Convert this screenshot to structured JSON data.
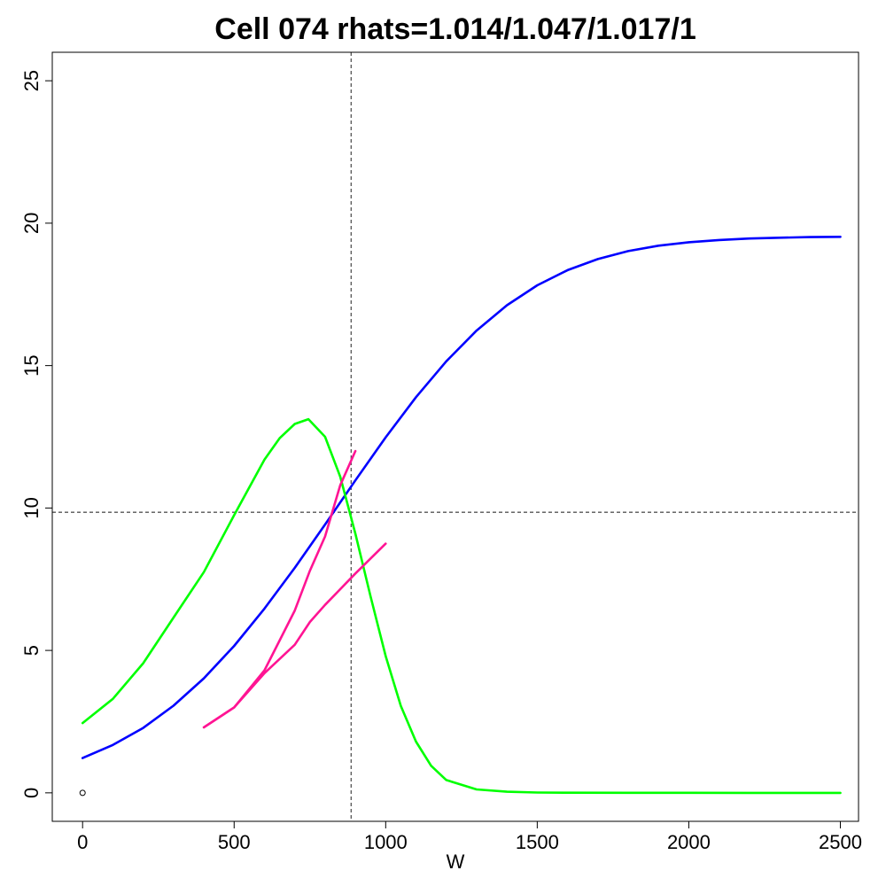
{
  "chart_data": {
    "type": "line",
    "title": "Cell 074 rhats=1.014/1.047/1.017/1",
    "xlabel": "W",
    "ylabel": "",
    "xlim": [
      -100,
      2560
    ],
    "ylim": [
      -1.0,
      26.0
    ],
    "x_ticks": [
      0,
      500,
      1000,
      1500,
      2000,
      2500
    ],
    "y_ticks": [
      0,
      5,
      10,
      15,
      20,
      25
    ],
    "grid": false,
    "reference_lines": {
      "vertical_x": 886,
      "horizontal_y": 9.85
    },
    "points": [
      {
        "x": 0,
        "y": 0
      }
    ],
    "series": [
      {
        "color": "#0000ff",
        "x": [
          0,
          100,
          200,
          300,
          400,
          500,
          600,
          700,
          800,
          900,
          1000,
          1100,
          1200,
          1300,
          1400,
          1500,
          1600,
          1700,
          1800,
          1900,
          2000,
          2100,
          2200,
          2300,
          2400,
          2500
        ],
        "y": [
          1.22,
          1.68,
          2.28,
          3.06,
          4.02,
          5.16,
          6.47,
          7.9,
          9.42,
          10.97,
          12.48,
          13.89,
          15.15,
          16.23,
          17.12,
          17.82,
          18.35,
          18.74,
          19.02,
          19.21,
          19.33,
          19.41,
          19.46,
          19.49,
          19.51,
          19.52
        ]
      },
      {
        "color": "#00ff00",
        "x": [
          0,
          100,
          200,
          300,
          400,
          500,
          600,
          650,
          700,
          745,
          800,
          850,
          900,
          950,
          1000,
          1050,
          1100,
          1150,
          1200,
          1300,
          1400,
          1500,
          1600,
          1800,
          2000,
          2200,
          2500
        ],
        "y": [
          2.45,
          3.3,
          4.55,
          6.15,
          7.75,
          9.75,
          11.7,
          12.45,
          12.95,
          13.12,
          12.5,
          11.1,
          9.1,
          6.9,
          4.8,
          3.05,
          1.8,
          0.95,
          0.45,
          0.12,
          0.04,
          0.01,
          0.005,
          0.002,
          0.001,
          0.0,
          0.0
        ]
      },
      {
        "color": "#ff1493",
        "x": [
          400,
          500,
          600,
          700,
          750,
          800,
          850,
          900
        ],
        "y": [
          2.3,
          3.0,
          4.3,
          6.4,
          7.8,
          9.0,
          10.8,
          12.0
        ]
      },
      {
        "color": "#ff1493",
        "x": [
          400,
          500,
          600,
          700,
          750,
          800,
          900,
          1000
        ],
        "y": [
          2.3,
          3.0,
          4.2,
          5.2,
          6.0,
          6.6,
          7.7,
          8.75
        ]
      }
    ]
  }
}
